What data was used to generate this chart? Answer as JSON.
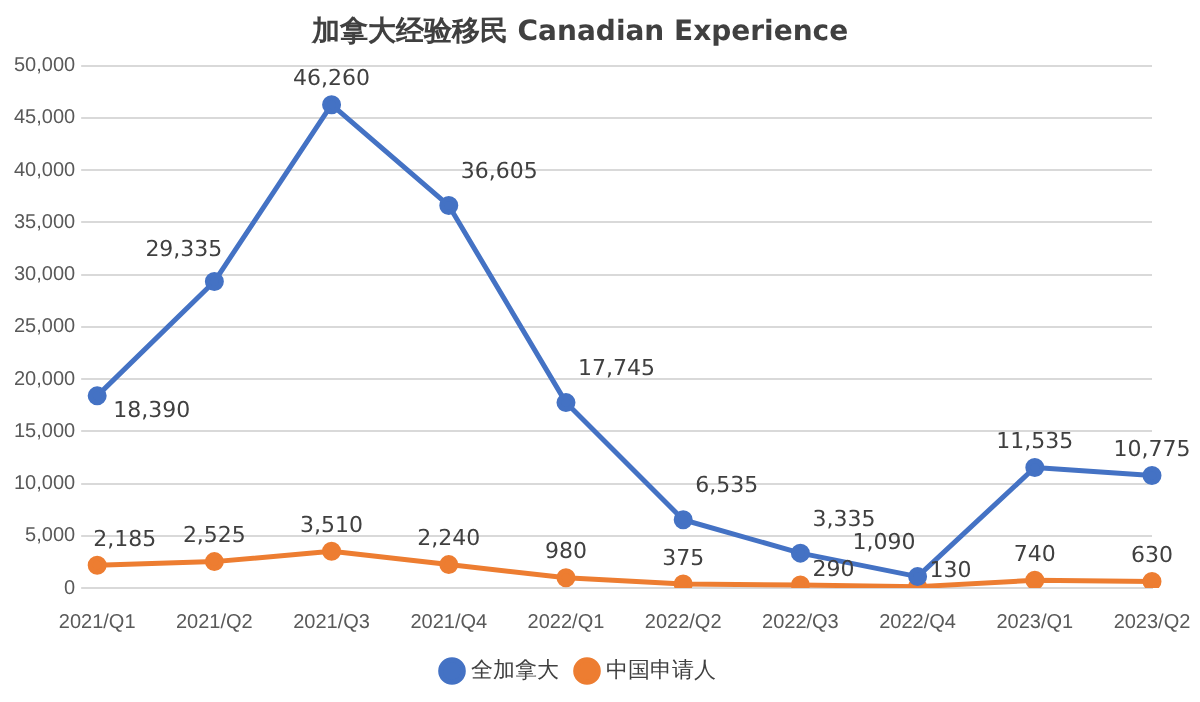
{
  "chart_data": {
    "type": "line",
    "title": "加拿大经验移民 Canadian Experience",
    "categories": [
      "2021/Q1",
      "2021/Q2",
      "2021/Q3",
      "2021/Q4",
      "2022/Q1",
      "2022/Q2",
      "2022/Q3",
      "2022/Q4",
      "2023/Q1",
      "2023/Q2"
    ],
    "series": [
      {
        "name": "全加拿大",
        "color": "#4472c4",
        "values": [
          18390,
          29335,
          46260,
          36605,
          17745,
          6535,
          3335,
          1090,
          11535,
          10775
        ],
        "value_labels": [
          "18,390",
          "29,335",
          "46,260",
          "36,605",
          "17,745",
          "6,535",
          "3,335",
          "1,090",
          "11,535",
          "10,775"
        ]
      },
      {
        "name": "中国申请人",
        "color": "#ed7d31",
        "values": [
          2185,
          2525,
          3510,
          2240,
          980,
          375,
          290,
          130,
          740,
          630
        ],
        "value_labels": [
          "2,185",
          "2,525",
          "3,510",
          "2,240",
          "980",
          "375",
          "290",
          "130",
          "740",
          "630"
        ]
      }
    ],
    "ylim": [
      0,
      50000
    ],
    "yticks": [
      {
        "value": 0,
        "label": "0"
      },
      {
        "value": 5000,
        "label": "5,000"
      },
      {
        "value": 10000,
        "label": "10,000"
      },
      {
        "value": 15000,
        "label": "15,000"
      },
      {
        "value": 20000,
        "label": "20,000"
      },
      {
        "value": 25000,
        "label": "25,000"
      },
      {
        "value": 30000,
        "label": "30,000"
      },
      {
        "value": 35000,
        "label": "35,000"
      },
      {
        "value": 40000,
        "label": "40,000"
      },
      {
        "value": 45000,
        "label": "45,000"
      },
      {
        "value": 50000,
        "label": "50,000"
      }
    ],
    "grid": "y",
    "legend": "bottom",
    "marker": "circle",
    "line_style": "solid"
  }
}
